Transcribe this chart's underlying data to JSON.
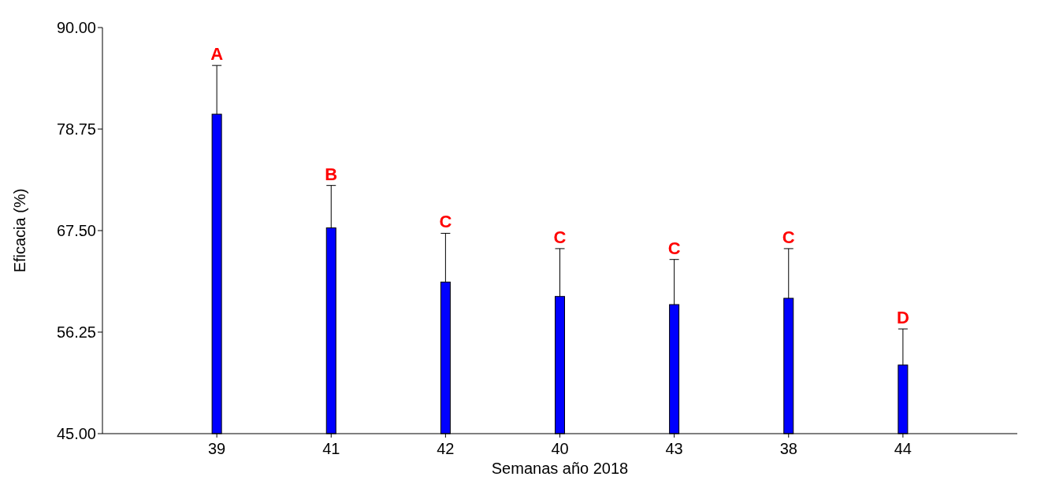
{
  "chart_data": {
    "type": "bar",
    "xlabel": "Semanas año 2018",
    "ylabel": "Eficacia (%)",
    "categories": [
      "39",
      "41",
      "42",
      "40",
      "43",
      "38",
      "44"
    ],
    "values": [
      80.4,
      67.8,
      61.8,
      60.2,
      59.3,
      60.0,
      52.6
    ],
    "errors": [
      [
        80.4,
        85.8
      ],
      [
        67.8,
        72.5
      ],
      [
        61.8,
        67.2
      ],
      [
        60.2,
        65.5
      ],
      [
        59.3,
        64.3
      ],
      [
        60.0,
        65.5
      ],
      [
        52.6,
        56.6
      ]
    ],
    "color": "#0000ff",
    "ylim": [
      45,
      90
    ],
    "yticks": [
      {
        "value": 45,
        "label": "45.00"
      },
      {
        "value": 56.25,
        "label": "56.25"
      },
      {
        "value": 67.5,
        "label": "67.50"
      },
      {
        "value": 78.75,
        "label": "78.75"
      },
      {
        "value": 90,
        "label": "90.00"
      }
    ],
    "annotations": [
      {
        "text": "A",
        "x": "39",
        "y": 85.8
      },
      {
        "text": "B",
        "x": "41",
        "y": 72.5
      },
      {
        "text": "C",
        "x": "42",
        "y": 67.2
      },
      {
        "text": "C",
        "x": "40",
        "y": 65.5
      },
      {
        "text": "C",
        "x": "43",
        "y": 64.3
      },
      {
        "text": "C",
        "x": "38",
        "y": 65.5
      },
      {
        "text": "D",
        "x": "44",
        "y": 56.6
      }
    ]
  }
}
